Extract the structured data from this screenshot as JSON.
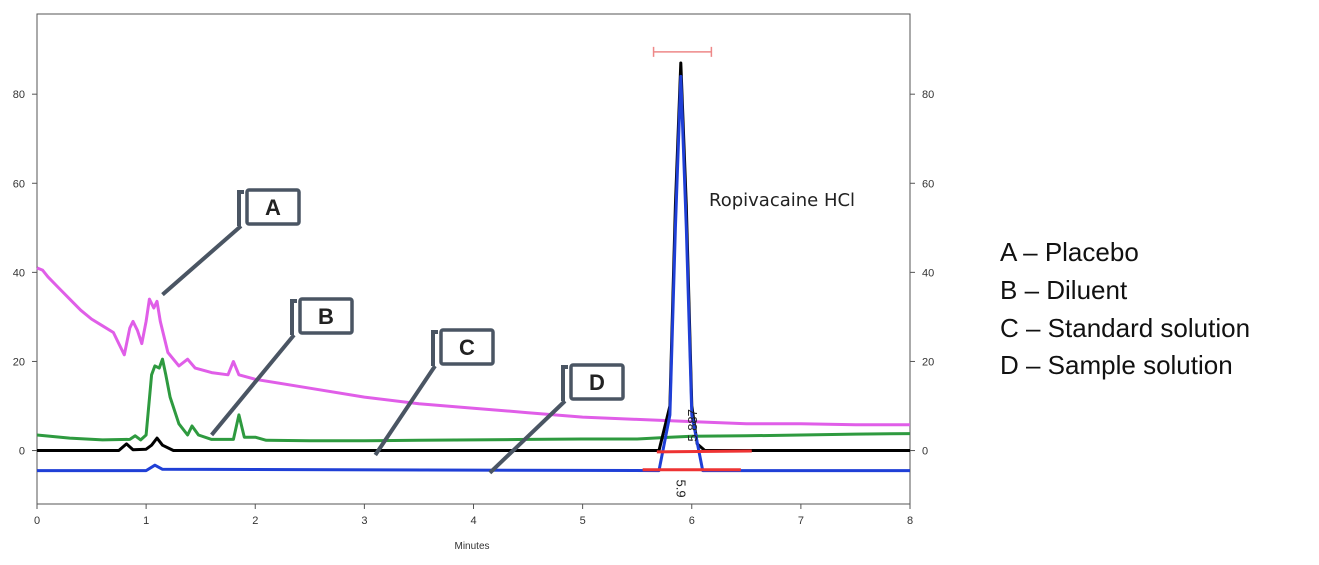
{
  "chart_data": {
    "type": "line",
    "xlabel": "Minutes",
    "ylabel": "",
    "xlim": [
      0,
      8
    ],
    "ylim": [
      -12,
      98
    ],
    "x_ticks": [
      0,
      1,
      2,
      3,
      4,
      5,
      6,
      7,
      8
    ],
    "y_ticks": [
      0,
      20,
      40,
      60,
      80
    ],
    "right_axis_ticks": [
      0,
      20,
      40,
      60,
      80
    ],
    "grid": false,
    "annotation": "Ropivacaine HCl",
    "peak_marker_labels": [
      "5.887",
      "5.9"
    ],
    "series": [
      {
        "name": "A",
        "color": "#e05ee8",
        "points": [
          [
            0,
            41
          ],
          [
            0.05,
            40.5
          ],
          [
            0.1,
            39
          ],
          [
            0.2,
            36.5
          ],
          [
            0.3,
            34
          ],
          [
            0.4,
            31.5
          ],
          [
            0.5,
            29.5
          ],
          [
            0.6,
            28
          ],
          [
            0.7,
            26.5
          ],
          [
            0.75,
            24
          ],
          [
            0.8,
            21.5
          ],
          [
            0.85,
            27.5
          ],
          [
            0.88,
            29
          ],
          [
            0.92,
            27
          ],
          [
            0.96,
            24
          ],
          [
            1.0,
            29
          ],
          [
            1.03,
            34
          ],
          [
            1.07,
            32
          ],
          [
            1.1,
            33.5
          ],
          [
            1.13,
            29
          ],
          [
            1.2,
            22
          ],
          [
            1.3,
            19
          ],
          [
            1.38,
            20.5
          ],
          [
            1.45,
            18.5
          ],
          [
            1.6,
            17.5
          ],
          [
            1.75,
            17
          ],
          [
            1.8,
            20
          ],
          [
            1.85,
            17
          ],
          [
            2.0,
            16
          ],
          [
            2.5,
            14
          ],
          [
            3.0,
            12
          ],
          [
            3.5,
            10.5
          ],
          [
            4.0,
            9.5
          ],
          [
            4.5,
            8.5
          ],
          [
            5.0,
            7.5
          ],
          [
            5.5,
            7
          ],
          [
            6.0,
            6.5
          ],
          [
            6.5,
            6
          ],
          [
            7.0,
            6
          ],
          [
            7.5,
            5.8
          ],
          [
            8.0,
            5.8
          ]
        ]
      },
      {
        "name": "B",
        "color": "#2e9a3f",
        "points": [
          [
            0,
            3.5
          ],
          [
            0.3,
            2.8
          ],
          [
            0.6,
            2.4
          ],
          [
            0.85,
            2.5
          ],
          [
            0.9,
            3.3
          ],
          [
            0.95,
            2.4
          ],
          [
            1.0,
            3.5
          ],
          [
            1.05,
            17
          ],
          [
            1.08,
            19
          ],
          [
            1.12,
            18.5
          ],
          [
            1.15,
            20.5
          ],
          [
            1.18,
            17
          ],
          [
            1.22,
            12
          ],
          [
            1.3,
            6
          ],
          [
            1.38,
            3.5
          ],
          [
            1.42,
            5.5
          ],
          [
            1.48,
            3.5
          ],
          [
            1.6,
            2.5
          ],
          [
            1.8,
            2.5
          ],
          [
            1.85,
            8
          ],
          [
            1.9,
            3
          ],
          [
            2.0,
            3
          ],
          [
            2.1,
            2.3
          ],
          [
            2.5,
            2.2
          ],
          [
            3.0,
            2.2
          ],
          [
            3.5,
            2.3
          ],
          [
            4.0,
            2.4
          ],
          [
            4.5,
            2.5
          ],
          [
            5.0,
            2.6
          ],
          [
            5.5,
            2.6
          ],
          [
            5.8,
            3
          ],
          [
            6.0,
            3.2
          ],
          [
            6.5,
            3.3
          ],
          [
            7.0,
            3.5
          ],
          [
            7.5,
            3.7
          ],
          [
            8.0,
            3.8
          ]
        ]
      },
      {
        "name": "C",
        "color": "#000000",
        "points": [
          [
            0,
            0
          ],
          [
            0.75,
            0
          ],
          [
            0.82,
            1.5
          ],
          [
            0.88,
            0.2
          ],
          [
            1.0,
            0.3
          ],
          [
            1.05,
            1.2
          ],
          [
            1.1,
            2.8
          ],
          [
            1.15,
            1.2
          ],
          [
            1.25,
            0
          ],
          [
            5.7,
            0
          ],
          [
            5.8,
            10
          ],
          [
            5.85,
            55
          ],
          [
            5.9,
            87
          ],
          [
            5.95,
            55
          ],
          [
            6.0,
            10
          ],
          [
            6.05,
            1.5
          ],
          [
            6.12,
            0
          ],
          [
            8.0,
            0
          ]
        ]
      },
      {
        "name": "D",
        "color": "#1f3fd6",
        "points": [
          [
            0,
            -4.5
          ],
          [
            1.0,
            -4.5
          ],
          [
            1.08,
            -3.3
          ],
          [
            1.15,
            -4.2
          ],
          [
            5.7,
            -4.5
          ],
          [
            5.8,
            8
          ],
          [
            5.85,
            50
          ],
          [
            5.9,
            84
          ],
          [
            5.95,
            50
          ],
          [
            6.0,
            8
          ],
          [
            6.1,
            -4.5
          ],
          [
            8.0,
            -4.5
          ]
        ]
      }
    ]
  },
  "callouts": [
    {
      "label": "A",
      "target": [
        1.15,
        35
      ]
    },
    {
      "label": "B",
      "target": [
        1.6,
        3.5
      ]
    },
    {
      "label": "C",
      "target": [
        3.1,
        -1
      ]
    },
    {
      "label": "D",
      "target": [
        4.15,
        -5
      ]
    }
  ],
  "legend": [
    "A – Placebo",
    "B – Diluent",
    "C – Standard solution",
    "D – Sample solution"
  ]
}
